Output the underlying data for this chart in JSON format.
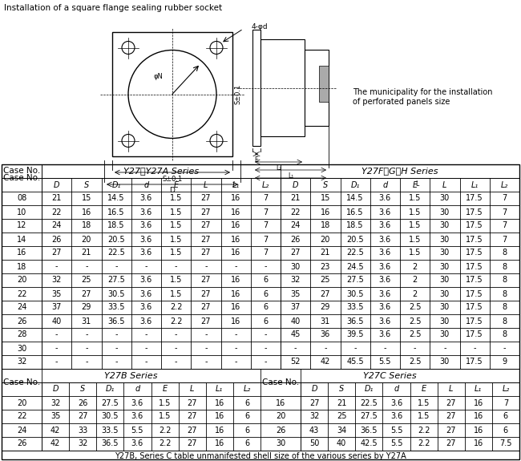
{
  "title": "Installation of a square flange sealing rubber socket",
  "diagram_note_line1": "The municipality for the installation",
  "diagram_note_line2": "of perforated panels size",
  "footer_note": "Y27B, Series C table unmanifested shell size of the various series by Y27A",
  "section1_title": "Y27、Y27A Series",
  "section2_title": "Y27F、G、H Series",
  "section3_title": "Y27B Series",
  "section4_title": "Y27C Series",
  "col_headers": [
    "D",
    "S",
    "D₁",
    "d",
    "E",
    "L",
    "L₁",
    "L₂"
  ],
  "case_no_label": "Case No.",
  "s1_rows": [
    [
      "08",
      "21",
      "15",
      "14.5",
      "3.6",
      "1.5",
      "27",
      "16",
      "7"
    ],
    [
      "10",
      "22",
      "16",
      "16.5",
      "3.6",
      "1.5",
      "27",
      "16",
      "7"
    ],
    [
      "12",
      "24",
      "18",
      "18.5",
      "3.6",
      "1.5",
      "27",
      "16",
      "7"
    ],
    [
      "14",
      "26",
      "20",
      "20.5",
      "3.6",
      "1.5",
      "27",
      "16",
      "7"
    ],
    [
      "16",
      "27",
      "21",
      "22.5",
      "3.6",
      "1.5",
      "27",
      "16",
      "7"
    ],
    [
      "18",
      "-",
      "-",
      "-",
      "-",
      "-",
      "-",
      "-",
      "-"
    ],
    [
      "20",
      "32",
      "25",
      "27.5",
      "3.6",
      "1.5",
      "27",
      "16",
      "6"
    ],
    [
      "22",
      "35",
      "27",
      "30.5",
      "3.6",
      "1.5",
      "27",
      "16",
      "6"
    ],
    [
      "24",
      "37",
      "29",
      "33.5",
      "3.6",
      "2.2",
      "27",
      "16",
      "6"
    ],
    [
      "26",
      "40",
      "31",
      "36.5",
      "3.6",
      "2.2",
      "27",
      "16",
      "6"
    ],
    [
      "28",
      "-",
      "-",
      "-",
      "-",
      "-",
      "-",
      "-",
      "-"
    ],
    [
      "30",
      "-",
      "-",
      "-",
      "-",
      "-",
      "-",
      "-",
      "-"
    ],
    [
      "32",
      "-",
      "-",
      "-",
      "-",
      "-",
      "-",
      "-",
      "-"
    ]
  ],
  "s2_rows": [
    [
      "21",
      "15",
      "14.5",
      "3.6",
      "1.5",
      "30",
      "17.5",
      "7"
    ],
    [
      "22",
      "16",
      "16.5",
      "3.6",
      "1.5",
      "30",
      "17.5",
      "7"
    ],
    [
      "24",
      "18",
      "18.5",
      "3.6",
      "1.5",
      "30",
      "17.5",
      "7"
    ],
    [
      "26",
      "20",
      "20.5",
      "3.6",
      "1.5",
      "30",
      "17.5",
      "7"
    ],
    [
      "27",
      "21",
      "22.5",
      "3.6",
      "1.5",
      "30",
      "17.5",
      "8"
    ],
    [
      "30",
      "23",
      "24.5",
      "3.6",
      "2",
      "30",
      "17.5",
      "8"
    ],
    [
      "32",
      "25",
      "27.5",
      "3.6",
      "2",
      "30",
      "17.5",
      "8"
    ],
    [
      "35",
      "27",
      "30.5",
      "3.6",
      "2",
      "30",
      "17.5",
      "8"
    ],
    [
      "37",
      "29",
      "33.5",
      "3.6",
      "2.5",
      "30",
      "17.5",
      "8"
    ],
    [
      "40",
      "31",
      "36.5",
      "3.6",
      "2.5",
      "30",
      "17.5",
      "8"
    ],
    [
      "45",
      "36",
      "39.5",
      "3.6",
      "2.5",
      "30",
      "17.5",
      "8"
    ],
    [
      "-",
      "-",
      "-",
      "-",
      "-",
      "-",
      "-",
      "-"
    ],
    [
      "52",
      "42",
      "45.5",
      "5.5",
      "2.5",
      "30",
      "17.5",
      "9"
    ]
  ],
  "s3_rows": [
    [
      "20",
      "32",
      "26",
      "27.5",
      "3.6",
      "1.5",
      "27",
      "16",
      "6"
    ],
    [
      "22",
      "35",
      "27",
      "30.5",
      "3.6",
      "1.5",
      "27",
      "16",
      "6"
    ],
    [
      "24",
      "42",
      "33",
      "33.5",
      "5.5",
      "2.2",
      "27",
      "16",
      "6"
    ],
    [
      "26",
      "42",
      "32",
      "36.5",
      "3.6",
      "2.2",
      "27",
      "16",
      "6"
    ]
  ],
  "s4_rows": [
    [
      "16",
      "27",
      "21",
      "22.5",
      "3.6",
      "1.5",
      "27",
      "16",
      "7"
    ],
    [
      "20",
      "32",
      "25",
      "27.5",
      "3.6",
      "1.5",
      "27",
      "16",
      "6"
    ],
    [
      "26",
      "43",
      "34",
      "36.5",
      "5.5",
      "2.2",
      "27",
      "16",
      "6"
    ],
    [
      "30",
      "50",
      "40",
      "42.5",
      "5.5",
      "2.2",
      "27",
      "16",
      "7.5"
    ]
  ]
}
